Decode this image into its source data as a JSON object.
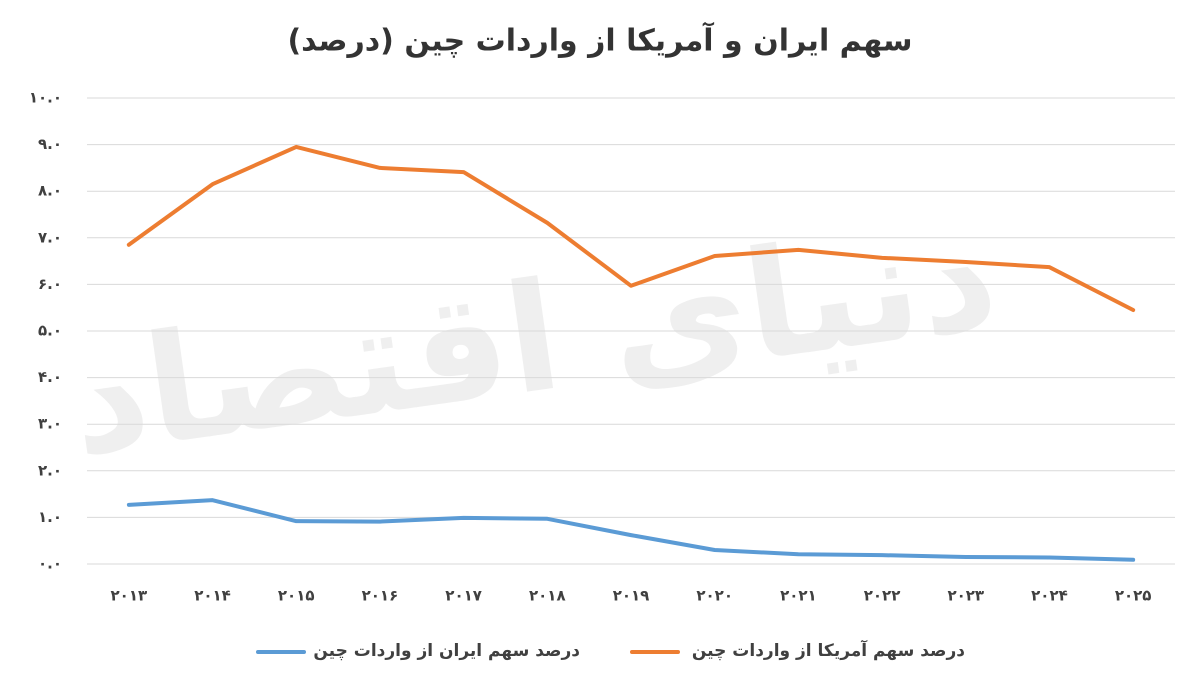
{
  "chart_data": {
    "type": "line",
    "title": "سهم ایران و آمریکا از واردات چین (درصد)",
    "watermark": "دنیای اقتصاد",
    "categories": [
      "۲۰۱۳",
      "۲۰۱۴",
      "۲۰۱۵",
      "۲۰۱۶",
      "۲۰۱۷",
      "۲۰۱۸",
      "۲۰۱۹",
      "۲۰۲۰",
      "۲۰۲۱",
      "۲۰۲۲",
      "۲۰۲۳",
      "۲۰۲۴",
      "۲۰۲۵"
    ],
    "series": [
      {
        "name": "درصد سهم آمریکا از واردات چین",
        "color": "#ed7d31",
        "values": [
          6.85,
          8.15,
          8.95,
          8.5,
          8.41,
          7.32,
          5.97,
          6.61,
          6.74,
          6.57,
          6.48,
          6.37,
          5.45
        ]
      },
      {
        "name": "درصد سهم ایران از واردات چین",
        "color": "#5b9bd5",
        "values": [
          1.27,
          1.37,
          0.92,
          0.91,
          0.99,
          0.97,
          0.62,
          0.3,
          0.21,
          0.19,
          0.15,
          0.14,
          0.09
        ]
      }
    ],
    "ylim": [
      0,
      10
    ],
    "yticks": [
      {
        "value": 0,
        "label": "۰.۰"
      },
      {
        "value": 1,
        "label": "۱.۰"
      },
      {
        "value": 2,
        "label": "۲.۰"
      },
      {
        "value": 3,
        "label": "۳.۰"
      },
      {
        "value": 4,
        "label": "۴.۰"
      },
      {
        "value": 5,
        "label": "۵.۰"
      },
      {
        "value": 6,
        "label": "۶.۰"
      },
      {
        "value": 7,
        "label": "۷.۰"
      },
      {
        "value": 8,
        "label": "۸.۰"
      },
      {
        "value": 9,
        "label": "۹.۰"
      },
      {
        "value": 10,
        "label": "۱۰.۰"
      }
    ],
    "grid": true,
    "legend": "bottom"
  }
}
